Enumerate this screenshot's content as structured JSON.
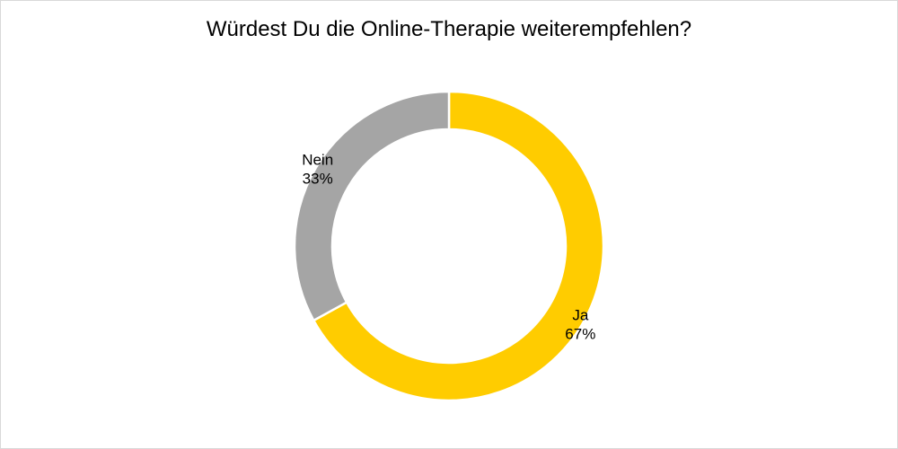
{
  "chart_data": {
    "type": "pie",
    "variant": "donut",
    "title": "Würdest Du die Online-Therapie weiterempfehlen?",
    "slices": [
      {
        "label": "Ja",
        "value": 67,
        "value_label": "67%",
        "color": "#ffcc00"
      },
      {
        "label": "Nein",
        "value": 33,
        "value_label": "33%",
        "color": "#a5a5a5"
      }
    ],
    "legend": "none"
  }
}
